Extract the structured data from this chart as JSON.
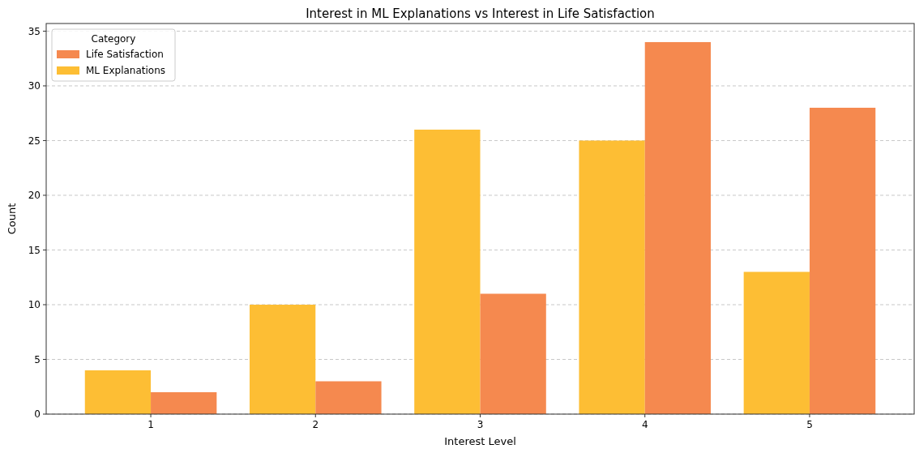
{
  "chart_data": {
    "type": "bar",
    "title": "Interest in ML Explanations vs Interest in Life Satisfaction",
    "xlabel": "Interest Level",
    "ylabel": "Count",
    "legend_title": "Category",
    "categories": [
      "1",
      "2",
      "3",
      "4",
      "5"
    ],
    "series": [
      {
        "name": "ML Explanations",
        "color": "#fdbe34",
        "values": [
          4,
          10,
          26,
          25,
          13
        ]
      },
      {
        "name": "Life Satisfaction",
        "color": "#f5894f",
        "values": [
          2,
          3,
          11,
          34,
          28
        ]
      }
    ],
    "ylim": [
      0,
      35.7
    ],
    "yticks": [
      0,
      5,
      10,
      15,
      20,
      25,
      30,
      35
    ],
    "grid": "y",
    "legend": "top left"
  }
}
